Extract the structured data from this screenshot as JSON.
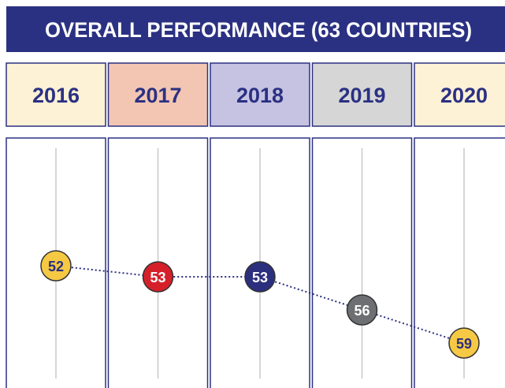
{
  "chart_data": {
    "type": "line",
    "title": "OVERALL PERFORMANCE (63 COUNTRIES)",
    "categories": [
      "2016",
      "2017",
      "2018",
      "2019",
      "2020"
    ],
    "values": [
      52,
      53,
      53,
      56,
      59
    ],
    "header_colors": [
      "#fdf1d6",
      "#f2c6b3",
      "#c6c2e2",
      "#d6d6d6",
      "#fdf1d6"
    ],
    "point_colors": [
      "#f6c944",
      "#d5202a",
      "#2b2f7e",
      "#6e6f72",
      "#f6c944"
    ],
    "line_color": "#2b2f7e",
    "y_inverted": true
  }
}
